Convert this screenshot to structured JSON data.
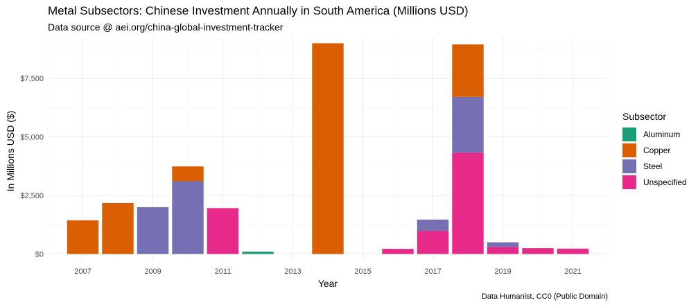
{
  "chart_data": {
    "type": "bar",
    "stacked": true,
    "title": "Metal Subsectors: Chinese Investment Annually in South America (Millions USD)",
    "subtitle": "Data source @ aei.org/china-global-investment-tracker",
    "caption": "Data Humanist, CC0 (Public Domain)",
    "xlabel": "Year",
    "ylabel": "In Millions USD ($)",
    "x_ticks": [
      "2007",
      "2009",
      "2011",
      "2013",
      "2015",
      "2017",
      "2019",
      "2021"
    ],
    "y_ticks": [
      0,
      2500,
      5000,
      7500
    ],
    "y_tick_labels": [
      "$0",
      "$2,500",
      "$5,000",
      "$7,500"
    ],
    "xlim": [
      2006,
      2022
    ],
    "ylim": [
      -250,
      9250
    ],
    "grid": true,
    "legend": {
      "title": "Subsector",
      "placement": "right",
      "entries": [
        "Aluminum",
        "Copper",
        "Steel",
        "Unspecified"
      ]
    },
    "colors": {
      "Aluminum": "#1b9e77",
      "Copper": "#d95f02",
      "Steel": "#7570b3",
      "Unspecified": "#e7298a"
    },
    "categories": [
      2007,
      2008,
      2009,
      2010,
      2011,
      2012,
      2013,
      2014,
      2015,
      2016,
      2017,
      2018,
      2019,
      2020,
      2021
    ],
    "series": [
      {
        "name": "Aluminum",
        "values": [
          0,
          0,
          0,
          0,
          0,
          100,
          0,
          0,
          0,
          0,
          0,
          0,
          0,
          0,
          0
        ]
      },
      {
        "name": "Copper",
        "values": [
          1440,
          2180,
          0,
          630,
          0,
          0,
          0,
          9000,
          0,
          0,
          0,
          2240,
          0,
          0,
          0
        ]
      },
      {
        "name": "Steel",
        "values": [
          0,
          0,
          2000,
          3110,
          0,
          0,
          0,
          0,
          0,
          0,
          480,
          2380,
          200,
          0,
          0
        ]
      },
      {
        "name": "Unspecified",
        "values": [
          0,
          0,
          0,
          0,
          1960,
          0,
          0,
          0,
          0,
          220,
          990,
          4330,
          300,
          250,
          230
        ]
      }
    ]
  }
}
